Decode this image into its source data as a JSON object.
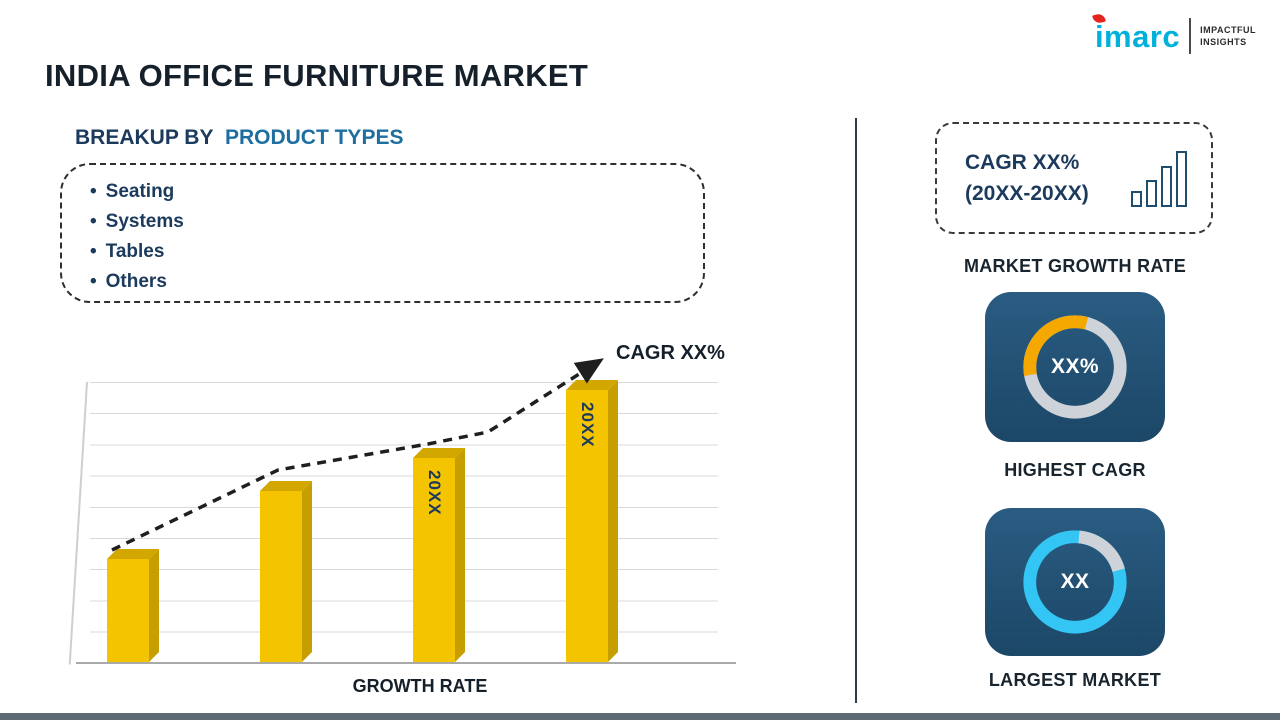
{
  "header": {
    "title": "INDIA OFFICE FURNITURE MARKET"
  },
  "logo": {
    "brand": "imarc",
    "tagline_line1": "IMPACTFUL",
    "tagline_line2": "INSIGHTS"
  },
  "breakup": {
    "heading_prefix": "BREAKUP BY",
    "heading_highlight": "PRODUCT TYPES",
    "items": [
      "Seating",
      "Systems",
      "Tables",
      "Others"
    ]
  },
  "chart": {
    "cagr_annotation": "CAGR XX%",
    "xlabel": "GROWTH RATE",
    "bar_labels": [
      "",
      "",
      "20XX",
      "20XX"
    ]
  },
  "chart_data": {
    "type": "bar",
    "categories": [
      "",
      "",
      "20XX",
      "20XX"
    ],
    "values": [
      38,
      63,
      75,
      100
    ],
    "value_unit": "relative bar height, percent of tallest bar (placeholder chart, no numeric axis shown)",
    "title": "",
    "xlabel": "GROWTH RATE",
    "ylabel": "",
    "ylim": [
      0,
      100
    ],
    "grid": true,
    "legend": false,
    "annotations": [
      "CAGR XX%"
    ],
    "trend_line": "dashed black arrow rising from first bar to CAGR XX% label"
  },
  "right_panel": {
    "growth_card": {
      "line1": "CAGR XX%",
      "line2": "(20XX-20XX)"
    },
    "growth_caption": "MARKET GROWTH RATE",
    "highest_cagr": {
      "value": "XX%",
      "caption": "HIGHEST CAGR"
    },
    "largest_market": {
      "value": "XX",
      "caption": "LARGEST MARKET"
    }
  },
  "colors": {
    "navy_text": "#1b3a5c",
    "steel_blue_text": "#1e6e9f",
    "bar_gold": "#f5c400",
    "donut_orange": "#f5a800",
    "donut_cyan": "#33c5f3",
    "ring_gray": "#cdd3d9",
    "card_navy": "#1d4868",
    "logo_cyan": "#00b1dc",
    "logo_red": "#e4251b"
  }
}
